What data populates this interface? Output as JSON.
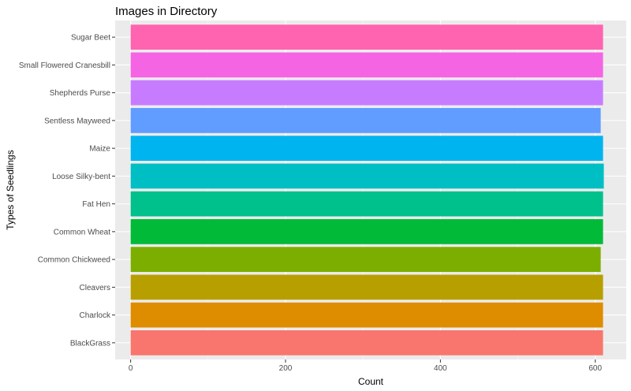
{
  "chart_data": {
    "type": "bar",
    "orientation": "horizontal",
    "title": "Images in Directory",
    "xlabel": "Count",
    "ylabel": "Types of Seedlings",
    "xlim": [
      -20,
      640
    ],
    "x_ticks": [
      0,
      200,
      400,
      600
    ],
    "categories": [
      "BlackGrass",
      "Charlock",
      "Cleavers",
      "Common Chickweed",
      "Common Wheat",
      "Fat Hen",
      "Loose Silky-bent",
      "Maize",
      "Sentless Mayweed",
      "Shepherds Purse",
      "Small Flowered Cranesbill",
      "Sugar Beet"
    ],
    "values": [
      610,
      610,
      610,
      607,
      610,
      610,
      611,
      610,
      607,
      610,
      610,
      610
    ],
    "colors": [
      "#F8766D",
      "#DE8C00",
      "#B79F00",
      "#7CAE00",
      "#00BA38",
      "#00C08B",
      "#00BFC4",
      "#00B4F0",
      "#619CFF",
      "#C77CFF",
      "#F564E3",
      "#FF64B0"
    ],
    "grid": true,
    "legend": "none",
    "panel_background": "#EBEBEB"
  }
}
